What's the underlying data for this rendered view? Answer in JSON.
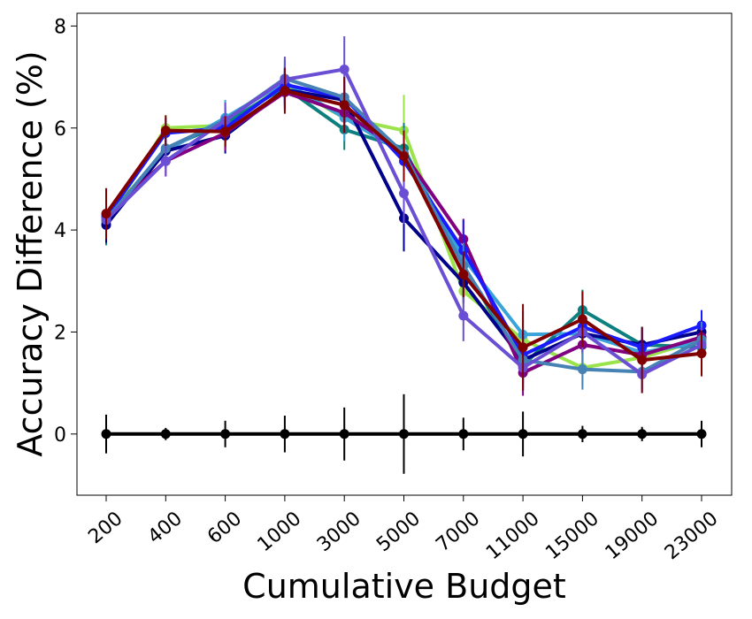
{
  "chart_data": {
    "type": "line",
    "title": "",
    "xlabel": "Cumulative Budget",
    "ylabel": "Accuracy Difference (%)",
    "categories": [
      "200",
      "400",
      "600",
      "1000",
      "3000",
      "5000",
      "7000",
      "11000",
      "15000",
      "19000",
      "23000"
    ],
    "ylim": [
      -1.2,
      8.25
    ],
    "yticks": [
      0,
      2,
      4,
      6,
      8
    ],
    "grid": false,
    "legend": "none",
    "series": [
      {
        "name": "yellow-green",
        "color": "#9be34a",
        "values": [
          4.15,
          6.0,
          6.05,
          6.85,
          6.2,
          5.95,
          2.8,
          1.85,
          1.3,
          1.5,
          1.85
        ],
        "errors": [
          0.3,
          0.25,
          0.25,
          0.3,
          0.3,
          0.7,
          0.4,
          0.4,
          0.35,
          0.3,
          0.35
        ]
      },
      {
        "name": "teal",
        "color": "#0e7f7f",
        "values": [
          4.2,
          5.6,
          6.1,
          6.8,
          5.97,
          5.6,
          3.3,
          1.35,
          2.43,
          1.75,
          1.7
        ],
        "errors": [
          0.5,
          0.3,
          0.3,
          0.35,
          0.4,
          0.5,
          0.45,
          0.45,
          0.4,
          0.35,
          0.45
        ]
      },
      {
        "name": "light-blue",
        "color": "#3aa3d8",
        "values": [
          4.15,
          5.55,
          6.2,
          6.9,
          6.2,
          5.5,
          3.45,
          1.95,
          1.97,
          1.6,
          1.8
        ],
        "errors": [
          0.35,
          0.35,
          0.35,
          0.45,
          0.45,
          0.5,
          0.45,
          0.45,
          0.4,
          0.35,
          0.35
        ]
      },
      {
        "name": "navy",
        "color": "#00008b",
        "values": [
          4.1,
          5.55,
          5.85,
          6.75,
          6.55,
          4.23,
          2.97,
          1.45,
          1.97,
          1.75,
          2.0
        ],
        "errors": [
          0.35,
          0.3,
          0.35,
          0.35,
          0.35,
          0.65,
          0.4,
          0.45,
          0.4,
          0.35,
          0.35
        ]
      },
      {
        "name": "purple",
        "color": "#800080",
        "values": [
          4.3,
          5.35,
          5.9,
          6.7,
          6.3,
          5.5,
          3.82,
          1.2,
          1.75,
          1.55,
          1.9
        ],
        "errors": [
          0.3,
          0.3,
          0.35,
          0.35,
          0.4,
          0.45,
          0.4,
          0.45,
          0.4,
          0.3,
          0.3
        ]
      },
      {
        "name": "blue",
        "color": "#1a1aff",
        "values": [
          4.25,
          5.9,
          6.0,
          6.85,
          6.6,
          5.35,
          3.6,
          1.55,
          2.1,
          1.7,
          2.13
        ],
        "errors": [
          0.35,
          0.3,
          0.3,
          0.35,
          0.35,
          0.5,
          0.6,
          0.45,
          0.4,
          0.35,
          0.3
        ]
      },
      {
        "name": "steel-blue",
        "color": "#4682b4",
        "values": [
          4.2,
          5.6,
          6.15,
          6.97,
          6.6,
          5.5,
          3.3,
          1.45,
          1.27,
          1.22,
          1.85
        ],
        "errors": [
          0.35,
          0.3,
          0.35,
          0.35,
          0.4,
          0.5,
          0.45,
          0.45,
          0.4,
          0.35,
          0.35
        ]
      },
      {
        "name": "slate-violet",
        "color": "#6a4fd4",
        "values": [
          4.2,
          5.35,
          6.15,
          6.95,
          7.15,
          4.72,
          2.32,
          1.3,
          2.0,
          1.17,
          1.75
        ],
        "errors": [
          0.35,
          0.3,
          0.35,
          0.45,
          0.65,
          0.6,
          0.5,
          0.45,
          0.4,
          0.35,
          0.35
        ]
      },
      {
        "name": "dark-red",
        "color": "#800000",
        "values": [
          4.32,
          5.95,
          5.93,
          6.73,
          6.45,
          5.45,
          3.13,
          1.7,
          2.25,
          1.45,
          1.58
        ],
        "errors": [
          0.5,
          0.3,
          0.3,
          0.45,
          0.55,
          0.5,
          0.45,
          0.85,
          0.55,
          0.65,
          0.45
        ]
      },
      {
        "name": "baseline",
        "color": "#000000",
        "values": [
          0,
          0,
          0,
          0,
          0,
          0,
          0,
          0,
          0,
          0,
          0
        ],
        "errors": [
          0.38,
          0.12,
          0.26,
          0.36,
          0.52,
          0.78,
          0.32,
          0.44,
          0.16,
          0.14,
          0.26
        ]
      }
    ]
  }
}
